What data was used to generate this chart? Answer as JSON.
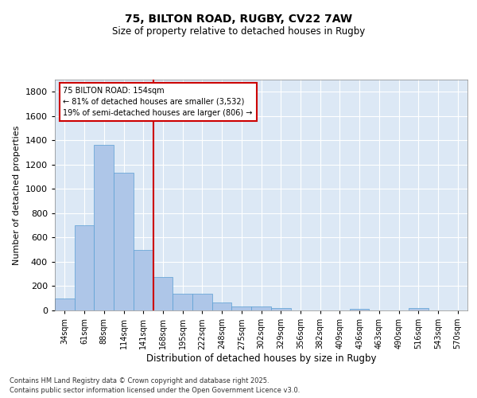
{
  "title_line1": "75, BILTON ROAD, RUGBY, CV22 7AW",
  "title_line2": "Size of property relative to detached houses in Rugby",
  "xlabel": "Distribution of detached houses by size in Rugby",
  "ylabel": "Number of detached properties",
  "categories": [
    "34sqm",
    "61sqm",
    "88sqm",
    "114sqm",
    "141sqm",
    "168sqm",
    "195sqm",
    "222sqm",
    "248sqm",
    "275sqm",
    "302sqm",
    "329sqm",
    "356sqm",
    "382sqm",
    "409sqm",
    "436sqm",
    "463sqm",
    "490sqm",
    "516sqm",
    "543sqm",
    "570sqm"
  ],
  "values": [
    97,
    703,
    1365,
    1133,
    495,
    272,
    140,
    140,
    68,
    35,
    32,
    17,
    0,
    0,
    0,
    14,
    0,
    0,
    18,
    0,
    0
  ],
  "bar_color": "#aec6e8",
  "bar_edge_color": "#5a9fd4",
  "vline_x": 4.5,
  "vline_color": "#cc0000",
  "ylim": [
    0,
    1900
  ],
  "yticks": [
    0,
    200,
    400,
    600,
    800,
    1000,
    1200,
    1400,
    1600,
    1800
  ],
  "annotation_text": "75 BILTON ROAD: 154sqm\n← 81% of detached houses are smaller (3,532)\n19% of semi-detached houses are larger (806) →",
  "annotation_box_color": "#ffffff",
  "annotation_box_edge": "#cc0000",
  "footer_text": "Contains HM Land Registry data © Crown copyright and database right 2025.\nContains public sector information licensed under the Open Government Licence v3.0.",
  "background_color": "#dce8f5",
  "grid_color": "#ffffff",
  "fig_width": 6.0,
  "fig_height": 5.0
}
